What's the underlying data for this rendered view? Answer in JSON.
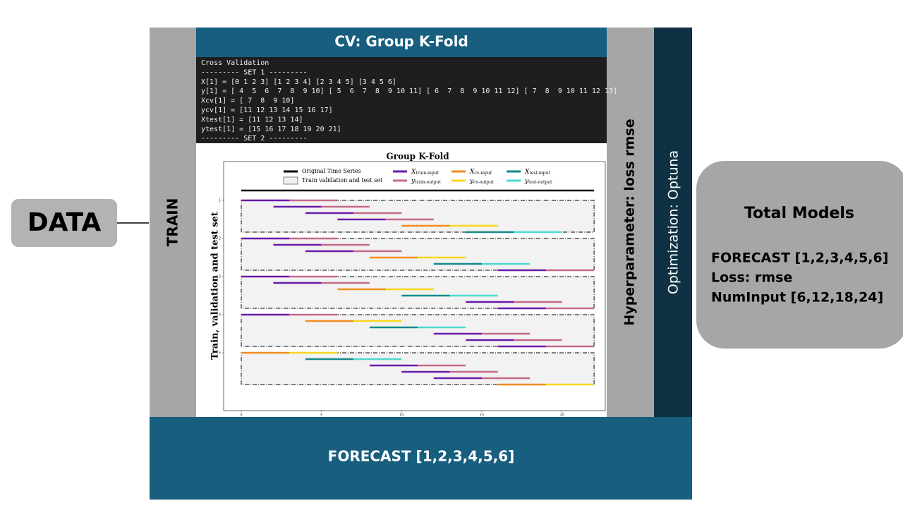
{
  "data_box": "DATA",
  "train_label": "TRAIN",
  "header": "CV: Group K-Fold",
  "console": [
    "Cross Validation",
    "--------- SET 1 ---------",
    "X[1] = [0 1 2 3] [1 2 3 4] [2 3 4 5] [3 4 5 6]",
    "y[1] = [ 4  5  6  7  8  9 10] [ 5  6  7  8  9 10 11] [ 6  7  8  9 10 11 12] [ 7  8  9 10 11 12 13]",
    "Xcv[1] = [ 7  8  9 10]",
    "ycv[1] = [11 12 13 14 15 16 17]",
    "Xtest[1] = [11 12 13 14]",
    "ytest[1] = [15 16 17 18 19 20 21]",
    "--------- SET 2 ---------"
  ],
  "hyperparameter": "Hyperparameter: loss rmse",
  "optimization": "Optimization: Optuna",
  "footer": "FORECAST [1,2,3,4,5,6]",
  "total_models": {
    "title": "Total Models",
    "lines": [
      "FORECAST [1,2,3,4,5,6]",
      "Loss: rmse",
      "NumInput [6,12,18,24]"
    ]
  },
  "chart_data": {
    "type": "segments",
    "title": "Group K-Fold",
    "ylabel": "Train, validation and test set",
    "xlim": [
      -1.1,
      22.7
    ],
    "xticks": [
      0,
      5,
      10,
      15,
      20
    ],
    "yticks": [
      1,
      2,
      3,
      4,
      5
    ],
    "legend": [
      {
        "name": "Original Time Series",
        "color": "#000000"
      },
      {
        "name": "Train validation and test set",
        "color": "#f2f2f2"
      },
      {
        "symbol": "X",
        "sub": "train-input",
        "color": "#6a1aa8"
      },
      {
        "symbol": "y",
        "sub": "train-output",
        "color": "#c4698a"
      },
      {
        "symbol": "X",
        "sub": "cv-input",
        "color": "#f08c1e"
      },
      {
        "symbol": "y",
        "sub": "cv-output",
        "color": "#f9d71c"
      },
      {
        "symbol": "X",
        "sub": "test-input",
        "color": "#138a8a"
      },
      {
        "symbol": "y",
        "sub": "test-output",
        "color": "#4dd9d2"
      }
    ],
    "original": [
      0,
      22
    ],
    "sets": [
      [
        [
          0,
          3,
          3,
          6,
          "#6a1aa8",
          "#c4698a"
        ],
        [
          2,
          5,
          5,
          8,
          "#6a1aa8",
          "#c4698a"
        ],
        [
          4,
          7,
          7,
          10,
          "#6a1aa8",
          "#c4698a"
        ],
        [
          6,
          9,
          9,
          12,
          "#6a1aa8",
          "#c4698a"
        ],
        [
          10,
          13,
          13,
          16,
          "#f08c1e",
          "#f9d71c"
        ],
        [
          14,
          17,
          17,
          20,
          "#138a8a",
          "#4dd9d2"
        ]
      ],
      [
        [
          0,
          3,
          3,
          6,
          "#6a1aa8",
          "#c4698a"
        ],
        [
          2,
          5,
          5,
          8,
          "#6a1aa8",
          "#c4698a"
        ],
        [
          4,
          7,
          7,
          10,
          "#6a1aa8",
          "#c4698a"
        ],
        [
          8,
          11,
          11,
          14,
          "#f08c1e",
          "#f9d71c"
        ],
        [
          12,
          15,
          15,
          18,
          "#138a8a",
          "#4dd9d2"
        ],
        [
          16,
          19,
          19,
          22,
          "#6a1aa8",
          "#c4698a"
        ]
      ],
      [
        [
          0,
          3,
          3,
          6,
          "#6a1aa8",
          "#c4698a"
        ],
        [
          2,
          5,
          5,
          8,
          "#6a1aa8",
          "#c4698a"
        ],
        [
          6,
          9,
          9,
          12,
          "#f08c1e",
          "#f9d71c"
        ],
        [
          10,
          13,
          13,
          16,
          "#138a8a",
          "#4dd9d2"
        ],
        [
          14,
          17,
          17,
          20,
          "#6a1aa8",
          "#c4698a"
        ],
        [
          16,
          19,
          19,
          22,
          "#6a1aa8",
          "#c4698a"
        ]
      ],
      [
        [
          0,
          3,
          3,
          6,
          "#6a1aa8",
          "#c4698a"
        ],
        [
          4,
          7,
          7,
          10,
          "#f08c1e",
          "#f9d71c"
        ],
        [
          8,
          11,
          11,
          14,
          "#138a8a",
          "#4dd9d2"
        ],
        [
          12,
          15,
          15,
          18,
          "#6a1aa8",
          "#c4698a"
        ],
        [
          14,
          17,
          17,
          20,
          "#6a1aa8",
          "#c4698a"
        ],
        [
          16,
          19,
          19,
          22,
          "#6a1aa8",
          "#c4698a"
        ]
      ],
      [
        [
          0,
          3,
          3,
          6,
          "#f08c1e",
          "#f9d71c"
        ],
        [
          4,
          7,
          7,
          10,
          "#138a8a",
          "#4dd9d2"
        ],
        [
          8,
          11,
          11,
          14,
          "#6a1aa8",
          "#c4698a"
        ],
        [
          10,
          13,
          13,
          16,
          "#6a1aa8",
          "#c4698a"
        ],
        [
          12,
          15,
          15,
          18,
          "#6a1aa8",
          "#c4698a"
        ],
        [
          16,
          19,
          19,
          22,
          "#f08c1e",
          "#f9d71c"
        ]
      ]
    ]
  }
}
